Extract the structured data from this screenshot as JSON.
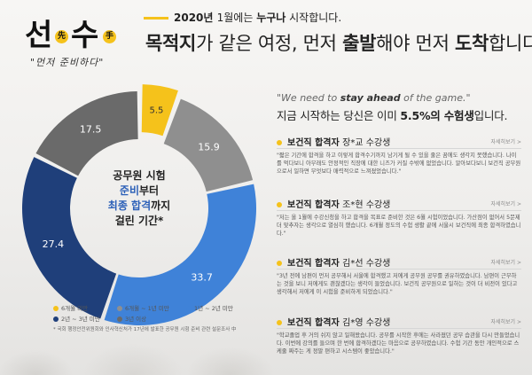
{
  "logo": {
    "char1": "선",
    "badge1": "先",
    "char2": "수",
    "badge2": "手",
    "tagline": "\"먼저 준비하다\""
  },
  "header": {
    "sub_prefix": "2020년 ",
    "sub_mid": "1월에는 ",
    "sub_bold": "누구나",
    "sub_suffix": " 시작합니다.",
    "title_1": "목적지",
    "title_2": "가 같은 여정, 먼저 ",
    "title_3": "출발",
    "title_4": "해야 먼저 ",
    "title_5": "도착",
    "title_6": "합니다."
  },
  "chart_center": {
    "line1": "공무원 시험",
    "line2a": "준비",
    "line2b": "부터",
    "line3a": "최종 합격",
    "line3b": "까지",
    "line4": "걸린 기간*"
  },
  "chart_data": {
    "type": "pie",
    "donut": true,
    "categories": [
      "6개월 미만",
      "6개월 ~ 1년 미만",
      "1년 ~ 2년 미만",
      "2년 ~ 3년 미만",
      "3년 이상"
    ],
    "values": [
      5.5,
      15.9,
      33.7,
      27.4,
      17.5
    ],
    "colors": [
      "#f5c21b",
      "#8f8f8f",
      "#3f82d8",
      "#1f3f7a",
      "#6a6a6a"
    ],
    "legend_placement": "bottom"
  },
  "legend": [
    "6개월 미만",
    "6개월 ~ 1년 미만",
    "1년 ~ 2년 미만",
    "2년 ~ 3년 미만",
    "3년 이상"
  ],
  "footnote": "* 국회 행정안전위원회와 인사혁신처가 17년에 발표한 공무원 시험 준비 관련 설문조사 中",
  "right": {
    "quote_a": "\"We need to ",
    "quote_b": "stay ahead",
    "quote_c": " of the game.\"",
    "head_a": "지금 시작하는 당신은 이미 ",
    "head_b": "5.5%의 수험생",
    "head_c": "입니다."
  },
  "cards": [
    {
      "title_a": "보건직 합격자 ",
      "title_b": "장*교 수강생",
      "more": "자세히보기 >",
      "body": "\"짧은 기간에 합격을 하고 이렇게 합격수기까지 남기게 될 수 있을 줄은 꿈에도 생각지 못했습니다. 나이를 먹다보니 아무래도 안정적인 직장에 대한 니즈가 커질 수밖에 없었습니다. 알아보다보니 보건직 공무원으로서 일하면 무엇보다 매력적으로 느껴졌었습니다.\""
    },
    {
      "title_a": "보건직 합격자 ",
      "title_b": "조*현 수강생",
      "more": "자세히보기 >",
      "body": "\"저는 올 1월에 수강신청을 하고 합격을 목표로 준비한 것은 6월 시험이었습니다. 가산점이 없어서 5문제 더 맞추자는 생각으로 열심히 했습니다. 6개월 정도의 수험 생활 끝에 서울시 보건직에 최종 합격하였습니다.\""
    },
    {
      "title_a": "보건직 합격자 ",
      "title_b": "김*선 수강생",
      "more": "자세히보기 >",
      "body": "\"3년 전에 남편이 먼저 공부해서 서울에 합격했고 저에게 공무원 공부를 권유하였습니다. 남편이 근무하는 것을 보니 저에게도 괜찮겠다는 생각이 들었습니다. 보건직 공무원으로 일하는 것이 더 비전이 있다고 생각해서 저에게 이 시험을 준비하게 되었습니다.\""
    },
    {
      "title_a": "보건직 합격자 ",
      "title_b": "김*영 수강생",
      "more": "자세히보기 >",
      "body": "\"학교졸업 후 거의 쉬지 않고 일해왔습니다. 공부를 시작한 후에는 사라졌던 공부 습관을 다시 만들었습니다. 이번에 강의를 들으며 한 번에 합격하겠다는 마음으로 공부하였습니다. 수험 기간 동안 개인적으로 스케줄 짜주는 게 정말 편하고 시스템이 좋았습니다.\""
    }
  ]
}
